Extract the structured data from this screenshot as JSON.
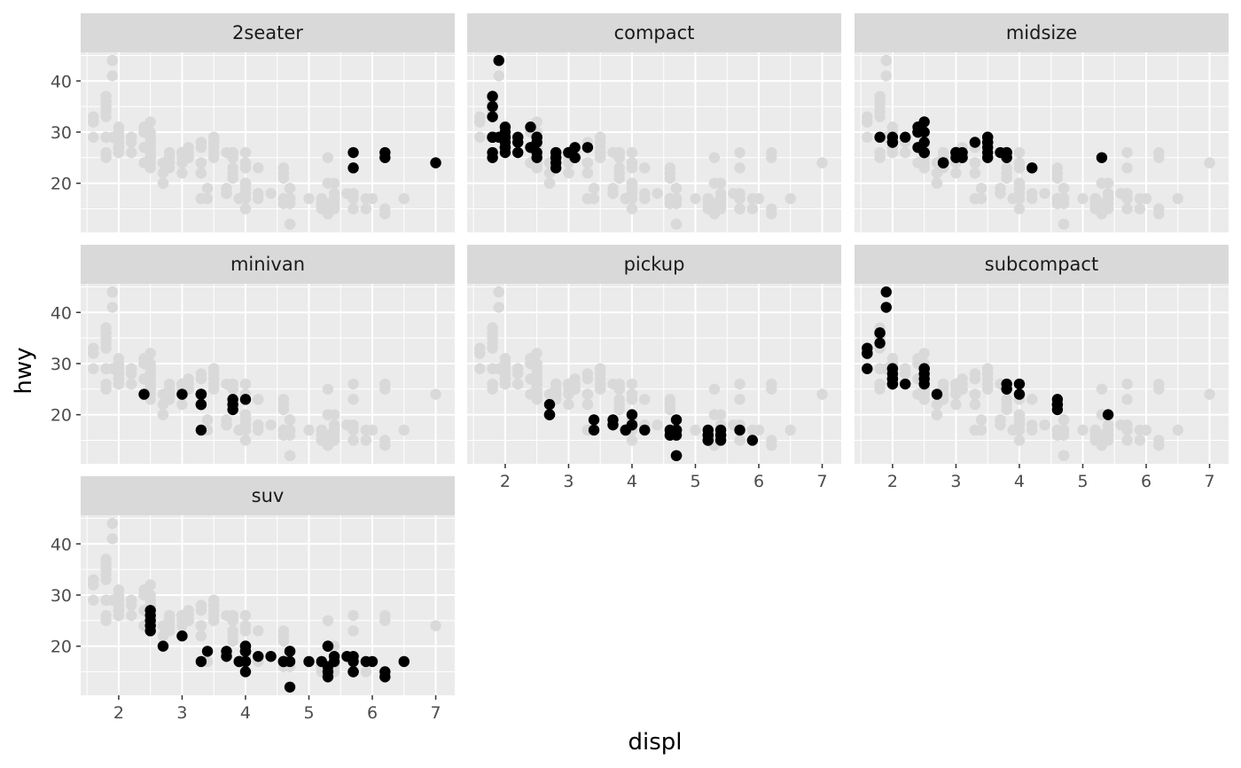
{
  "chart_data": {
    "type": "scatter",
    "facet_by": "class",
    "xlabel": "displ",
    "ylabel": "hwy",
    "xlim": [
      1.4,
      7.3
    ],
    "ylim": [
      10.4,
      45.6
    ],
    "x_ticks": [
      2,
      3,
      4,
      5,
      6,
      7
    ],
    "y_ticks": [
      20,
      30,
      40
    ],
    "colors": {
      "panel_bg": "#ebebeb",
      "strip_bg": "#d9d9d9",
      "grid": "#ffffff",
      "background_points": "#d9d9d9",
      "highlight_points": "#000000"
    },
    "panels": [
      {
        "label": "2seater",
        "points": [
          [
            5.7,
            26
          ],
          [
            5.7,
            23
          ],
          [
            6.2,
            26
          ],
          [
            6.2,
            25
          ],
          [
            7.0,
            24
          ]
        ]
      },
      {
        "label": "compact",
        "points": [
          [
            1.8,
            29
          ],
          [
            1.8,
            29
          ],
          [
            2.0,
            31
          ],
          [
            2.0,
            30
          ],
          [
            2.8,
            26
          ],
          [
            2.8,
            26
          ],
          [
            3.1,
            27
          ],
          [
            1.8,
            26
          ],
          [
            1.8,
            25
          ],
          [
            2.0,
            28
          ],
          [
            2.0,
            27
          ],
          [
            2.8,
            25
          ],
          [
            2.8,
            25
          ],
          [
            3.1,
            25
          ],
          [
            3.1,
            25
          ],
          [
            2.2,
            26
          ],
          [
            2.2,
            29
          ],
          [
            2.4,
            27
          ],
          [
            2.4,
            31
          ],
          [
            3.0,
            26
          ],
          [
            3.0,
            26
          ],
          [
            3.3,
            27
          ],
          [
            1.8,
            29
          ],
          [
            1.8,
            29
          ],
          [
            1.8,
            37
          ],
          [
            1.8,
            35
          ],
          [
            1.8,
            33
          ],
          [
            1.9,
            44
          ],
          [
            1.9,
            29
          ],
          [
            2.0,
            29
          ],
          [
            2.0,
            29
          ],
          [
            2.0,
            26
          ],
          [
            2.0,
            29
          ],
          [
            2.5,
            29
          ],
          [
            2.5,
            26
          ],
          [
            2.5,
            25
          ],
          [
            2.8,
            23
          ],
          [
            2.8,
            24
          ],
          [
            2.5,
            28
          ],
          [
            2.5,
            29
          ],
          [
            2.0,
            27
          ],
          [
            2.2,
            28
          ]
        ]
      },
      {
        "label": "midsize",
        "points": [
          [
            1.8,
            29
          ],
          [
            2.0,
            28
          ],
          [
            2.2,
            29
          ],
          [
            2.4,
            27
          ],
          [
            2.4,
            31
          ],
          [
            2.5,
            32
          ],
          [
            2.5,
            26
          ],
          [
            2.8,
            24
          ],
          [
            2.8,
            24
          ],
          [
            3.0,
            26
          ],
          [
            3.0,
            26
          ],
          [
            3.1,
            26
          ],
          [
            3.1,
            25
          ],
          [
            3.3,
            28
          ],
          [
            3.5,
            29
          ],
          [
            3.5,
            26
          ],
          [
            3.5,
            25
          ],
          [
            3.5,
            27
          ],
          [
            3.7,
            26
          ],
          [
            3.8,
            26
          ],
          [
            3.8,
            25
          ],
          [
            4.2,
            23
          ],
          [
            2.4,
            30
          ],
          [
            2.4,
            30
          ],
          [
            2.5,
            26
          ],
          [
            2.5,
            26
          ],
          [
            3.0,
            26
          ],
          [
            3.0,
            26
          ],
          [
            3.5,
            28
          ],
          [
            3.8,
            26
          ],
          [
            5.3,
            25
          ],
          [
            2.0,
            28
          ],
          [
            2.0,
            29
          ],
          [
            2.4,
            30
          ],
          [
            2.5,
            28
          ],
          [
            2.5,
            30
          ],
          [
            3.0,
            25
          ],
          [
            3.0,
            26
          ],
          [
            3.5,
            28
          ],
          [
            3.5,
            29
          ],
          [
            2.8,
            24
          ]
        ]
      },
      {
        "label": "minivan",
        "points": [
          [
            2.4,
            24
          ],
          [
            3.0,
            24
          ],
          [
            3.3,
            22
          ],
          [
            3.3,
            22
          ],
          [
            3.3,
            24
          ],
          [
            3.3,
            24
          ],
          [
            3.3,
            24
          ],
          [
            3.3,
            17
          ],
          [
            3.8,
            22
          ],
          [
            3.8,
            21
          ],
          [
            3.8,
            23
          ],
          [
            4.0,
            23
          ]
        ]
      },
      {
        "label": "pickup",
        "points": [
          [
            2.7,
            20
          ],
          [
            2.7,
            22
          ],
          [
            3.4,
            17
          ],
          [
            3.4,
            19
          ],
          [
            3.7,
            18
          ],
          [
            3.7,
            19
          ],
          [
            3.9,
            17
          ],
          [
            3.9,
            17
          ],
          [
            4.0,
            18
          ],
          [
            4.0,
            18
          ],
          [
            4.0,
            20
          ],
          [
            4.2,
            17
          ],
          [
            4.7,
            17
          ],
          [
            4.7,
            12
          ],
          [
            4.7,
            16
          ],
          [
            4.7,
            17
          ],
          [
            4.7,
            19
          ],
          [
            5.2,
            15
          ],
          [
            5.2,
            16
          ],
          [
            5.2,
            17
          ],
          [
            5.4,
            17
          ],
          [
            5.4,
            15
          ],
          [
            5.7,
            17
          ],
          [
            5.9,
            15
          ],
          [
            4.6,
            17
          ],
          [
            4.6,
            16
          ],
          [
            5.4,
            16
          ],
          [
            4.7,
            12
          ],
          [
            4.7,
            17
          ],
          [
            5.2,
            16
          ],
          [
            5.2,
            15
          ],
          [
            5.4,
            16
          ],
          [
            2.7,
            20
          ]
        ]
      },
      {
        "label": "subcompact",
        "points": [
          [
            3.8,
            26
          ],
          [
            3.8,
            25
          ],
          [
            4.0,
            26
          ],
          [
            4.0,
            24
          ],
          [
            4.6,
            21
          ],
          [
            4.6,
            22
          ],
          [
            4.6,
            23
          ],
          [
            4.6,
            22
          ],
          [
            5.4,
            20
          ],
          [
            1.6,
            33
          ],
          [
            1.6,
            32
          ],
          [
            1.6,
            32
          ],
          [
            1.6,
            29
          ],
          [
            1.6,
            32
          ],
          [
            1.8,
            34
          ],
          [
            1.8,
            36
          ],
          [
            1.8,
            36
          ],
          [
            2.0,
            29
          ],
          [
            2.0,
            26
          ],
          [
            2.0,
            27
          ],
          [
            2.0,
            29
          ],
          [
            2.0,
            26
          ],
          [
            2.0,
            27
          ],
          [
            2.2,
            26
          ],
          [
            2.5,
            26
          ],
          [
            2.5,
            29
          ],
          [
            2.5,
            27
          ],
          [
            2.5,
            28
          ],
          [
            2.7,
            24
          ],
          [
            1.9,
            44
          ],
          [
            1.9,
            41
          ],
          [
            2.0,
            28
          ],
          [
            2.5,
            29
          ]
        ]
      },
      {
        "label": "suv",
        "points": [
          [
            5.3,
            20
          ],
          [
            5.3,
            15
          ],
          [
            5.3,
            20
          ],
          [
            5.7,
            17
          ],
          [
            6.0,
            17
          ],
          [
            5.7,
            15
          ],
          [
            5.7,
            18
          ],
          [
            6.2,
            14
          ],
          [
            6.2,
            15
          ],
          [
            6.5,
            17
          ],
          [
            5.6,
            18
          ],
          [
            3.7,
            19
          ],
          [
            3.7,
            18
          ],
          [
            3.9,
            17
          ],
          [
            3.9,
            17
          ],
          [
            4.7,
            19
          ],
          [
            4.7,
            19
          ],
          [
            4.7,
            12
          ],
          [
            5.2,
            17
          ],
          [
            5.7,
            15
          ],
          [
            5.9,
            17
          ],
          [
            4.6,
            17
          ],
          [
            5.4,
            17
          ],
          [
            5.4,
            18
          ],
          [
            4.0,
            19
          ],
          [
            4.0,
            17
          ],
          [
            4.0,
            19
          ],
          [
            4.0,
            19
          ],
          [
            4.6,
            17
          ],
          [
            5.0,
            17
          ],
          [
            4.2,
            18
          ],
          [
            4.4,
            18
          ],
          [
            4.6,
            17
          ],
          [
            5.3,
            16
          ],
          [
            5.3,
            14
          ],
          [
            4.0,
            20
          ],
          [
            4.0,
            15
          ],
          [
            4.0,
            20
          ],
          [
            4.7,
            17
          ],
          [
            2.5,
            27
          ],
          [
            2.5,
            25
          ],
          [
            2.5,
            26
          ],
          [
            2.5,
            24
          ],
          [
            2.5,
            23
          ],
          [
            2.7,
            20
          ],
          [
            3.0,
            22
          ],
          [
            3.3,
            17
          ],
          [
            3.4,
            19
          ],
          [
            4.0,
            17
          ]
        ]
      }
    ]
  }
}
